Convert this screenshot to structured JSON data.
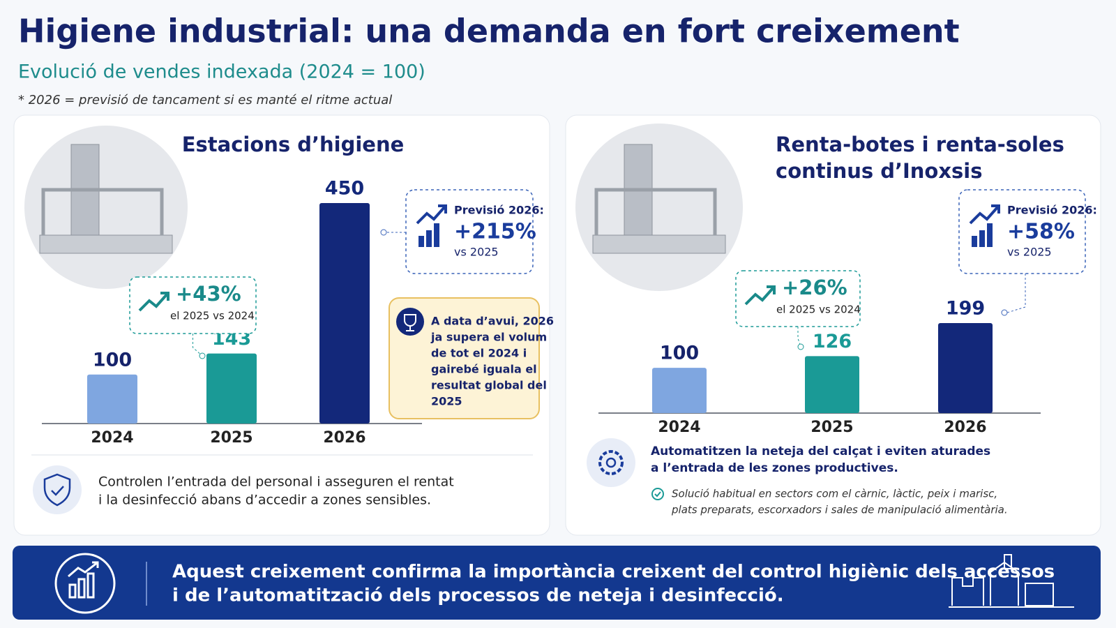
{
  "header": {
    "title": "Higiene industrial: una demanda en fort creixement",
    "subtitle": "Evolució de vendes indexada (2024 = 100)",
    "note": "* 2026 = previsió de tancament si es manté el ritme actual"
  },
  "chart_data": [
    {
      "type": "bar",
      "title": [
        "Estacions d’higiene"
      ],
      "categories": [
        "2024",
        "2025",
        "2026"
      ],
      "values": [
        100,
        143,
        450
      ],
      "colors": [
        "#7fa6e0",
        "#1a9a96",
        "#13287a"
      ],
      "growth": {
        "value": "+43%",
        "label": "el 2025 vs 2024"
      },
      "forecast": {
        "heading": "Previsió 2026:",
        "value": "+215%",
        "label": "vs 2025"
      },
      "highlight": [
        "A data d’avui, 2026",
        "ja supera el volum",
        "de tot el 2024 i",
        "gairebé iguala el",
        "resultat global del",
        "2025"
      ],
      "description": [
        "Controlen l’entrada del personal i asseguren el rentat",
        "i la desinfecció abans d’accedir a zones sensibles."
      ]
    },
    {
      "type": "bar",
      "title": [
        "Renta-botes i renta-soles",
        "continus d’Inoxsis"
      ],
      "categories": [
        "2024",
        "2025",
        "2026"
      ],
      "values": [
        100,
        126,
        199
      ],
      "colors": [
        "#7fa6e0",
        "#1a9a96",
        "#13287a"
      ],
      "growth": {
        "value": "+26%",
        "label": "el 2025 vs 2024"
      },
      "forecast": {
        "heading": "Previsió 2026:",
        "value": "+58%",
        "label": "vs 2025"
      },
      "description": [
        "Automatitzen la neteja del calçat i eviten aturades",
        "a l’entrada de les zones productives."
      ],
      "note": [
        "Solució habitual en sectors com el càrnic, làctic, peix i marisc,",
        "plats preparats, escorxadors i sales de manipulació alimentària."
      ]
    }
  ],
  "footer": [
    "Aquest creixement confirma la importància creixent del control higiènic dels accessos",
    "i de l’automatització dels processos de neteja i desinfecció."
  ]
}
